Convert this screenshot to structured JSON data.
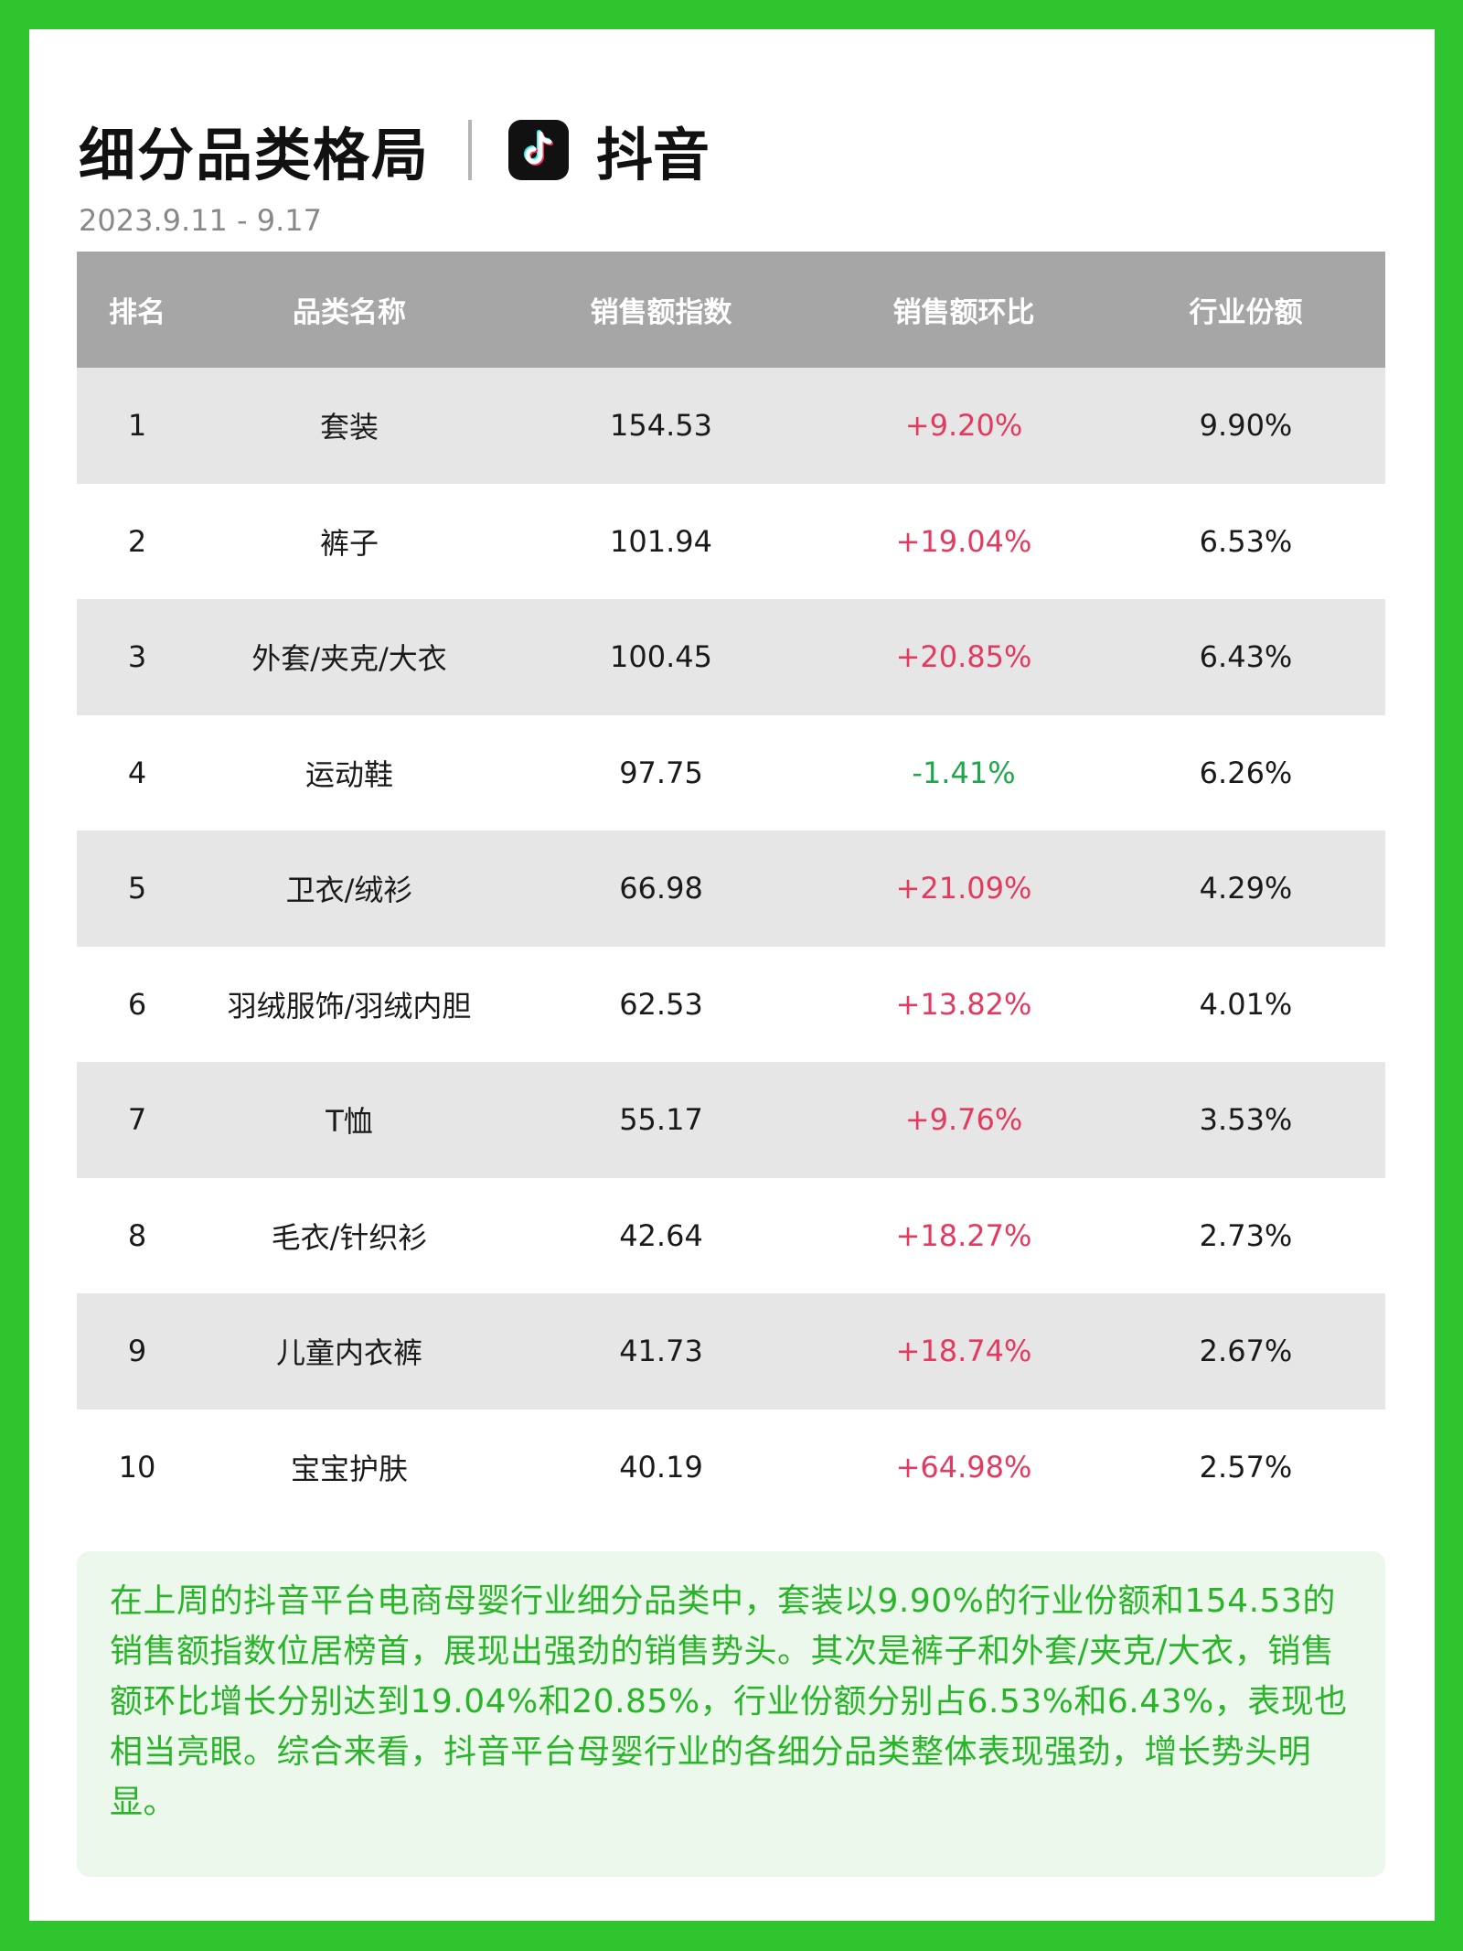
{
  "header": {
    "title": "细分品类格局",
    "platform_icon": "tiktok-note-icon",
    "platform_name": "抖音",
    "date_range": "2023.9.11 - 9.17"
  },
  "table": {
    "columns": [
      "排名",
      "品类名称",
      "销售额指数",
      "销售额环比",
      "行业份额"
    ],
    "rows": [
      {
        "rank": "1",
        "category": "套装",
        "index": "154.53",
        "wow": "+9.20%",
        "share": "9.90%"
      },
      {
        "rank": "2",
        "category": "裤子",
        "index": "101.94",
        "wow": "+19.04%",
        "share": "6.53%"
      },
      {
        "rank": "3",
        "category": "外套/夹克/大衣",
        "index": "100.45",
        "wow": "+20.85%",
        "share": "6.43%"
      },
      {
        "rank": "4",
        "category": "运动鞋",
        "index": "97.75",
        "wow": "-1.41%",
        "share": "6.26%"
      },
      {
        "rank": "5",
        "category": "卫衣/绒衫",
        "index": "66.98",
        "wow": "+21.09%",
        "share": "4.29%"
      },
      {
        "rank": "6",
        "category": "羽绒服饰/羽绒内胆",
        "index": "62.53",
        "wow": "+13.82%",
        "share": "4.01%"
      },
      {
        "rank": "7",
        "category": "T恤",
        "index": "55.17",
        "wow": "+9.76%",
        "share": "3.53%"
      },
      {
        "rank": "8",
        "category": "毛衣/针织衫",
        "index": "42.64",
        "wow": "+18.27%",
        "share": "2.73%"
      },
      {
        "rank": "9",
        "category": "儿童内衣裤",
        "index": "41.73",
        "wow": "+18.74%",
        "share": "2.67%"
      },
      {
        "rank": "10",
        "category": "宝宝护肤",
        "index": "40.19",
        "wow": "+64.98%",
        "share": "2.57%"
      }
    ]
  },
  "summary": {
    "text": "在上周的抖音平台电商母婴行业细分品类中，套装以9.90%的行业份额和154.53的销售额指数位居榜首，展现出强劲的销售势头。其次是裤子和外套/夹克/大衣，销售额环比增长分别达到19.04%和20.85%，行业份额分别占6.53%和6.43%，表现也相当亮眼。综合来看，抖音平台母婴行业的各细分品类整体表现强劲，增长势头明显。"
  },
  "colors": {
    "frame": "#2ec52e",
    "header_row": "#a6a6a6",
    "stripe": "#e6e6e6",
    "positive": "#e33a5f",
    "negative": "#1fa84b",
    "summary_text": "#2ab42a",
    "summary_bg": "#edf8ed"
  }
}
